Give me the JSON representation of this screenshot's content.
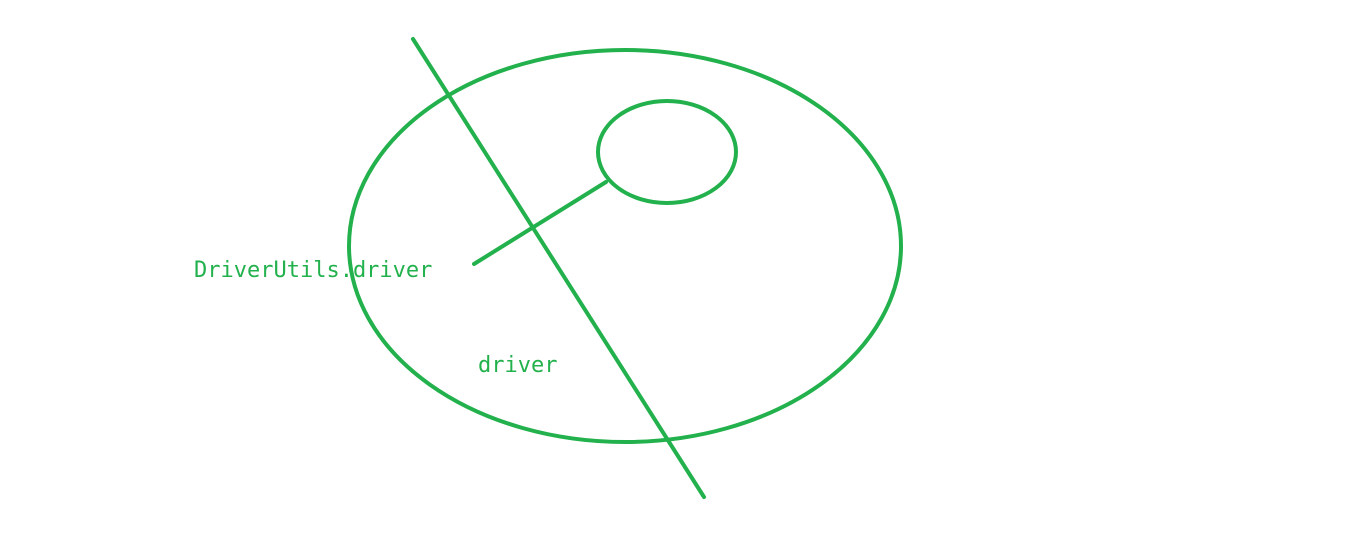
{
  "colors": {
    "stroke": "#22b14c",
    "text": "#22b14c"
  },
  "labels": {
    "outer_reference": "DriverUtils.driver",
    "local_reference": "driver"
  }
}
